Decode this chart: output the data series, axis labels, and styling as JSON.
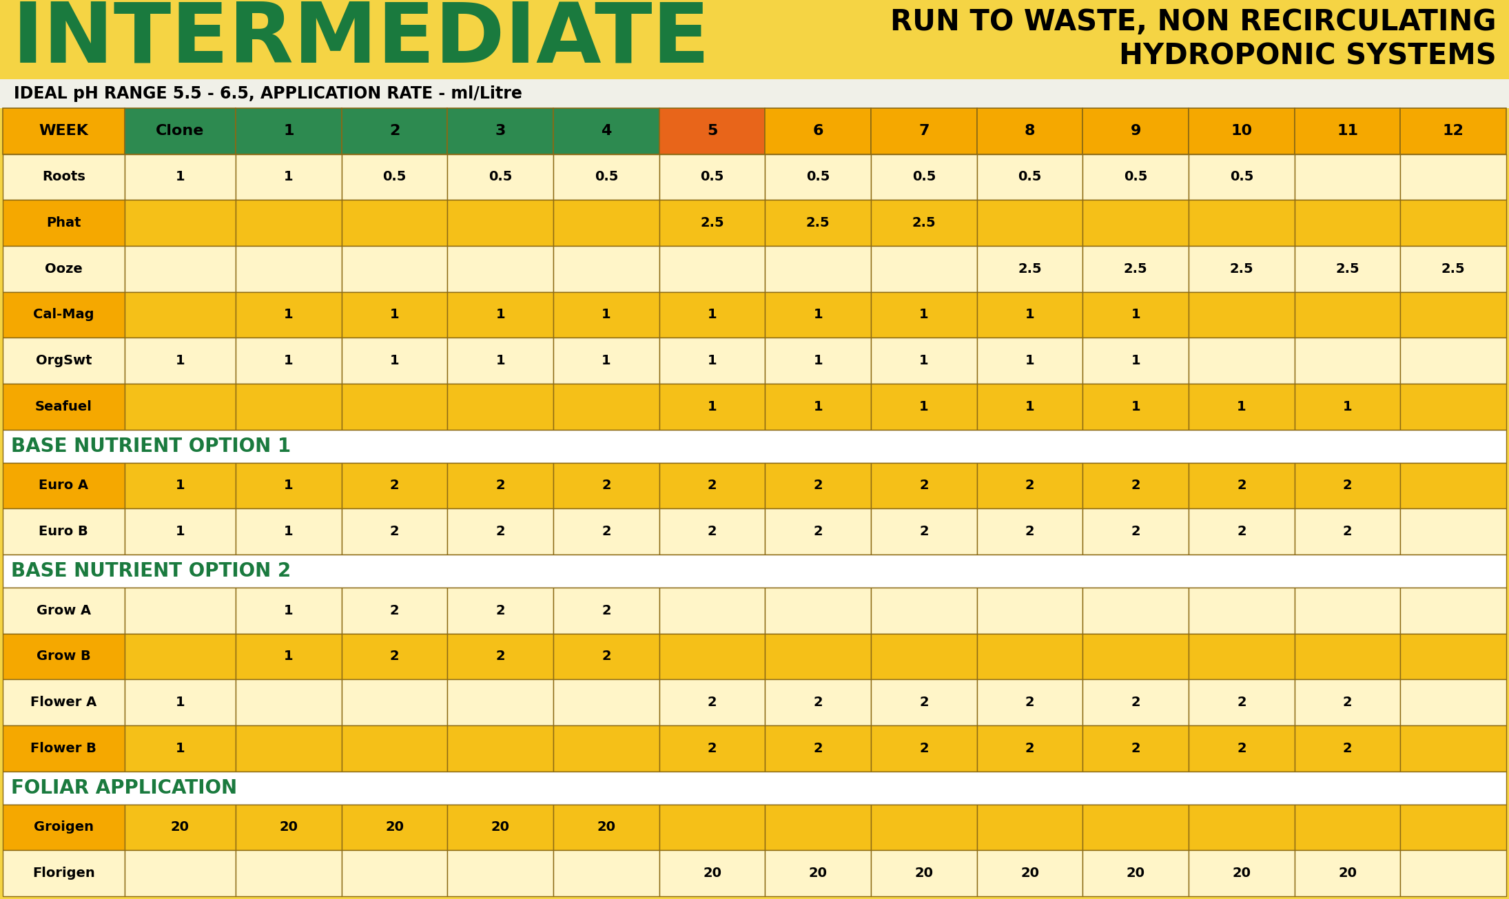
{
  "bg_color": "#F5D444",
  "title_left": "INTERMEDIATE",
  "title_right_line1": "RUN TO WASTE, NON RECIRCULATING",
  "title_right_line2": "HYDROPONIC SYSTEMS",
  "subtitle": "IDEAL pH RANGE 5.5 - 6.5, APPLICATION RATE - ml/Litre",
  "col_labels": [
    "WEEK",
    "Clone",
    "1",
    "2",
    "3",
    "4",
    "5",
    "6",
    "7",
    "8",
    "9",
    "10",
    "11",
    "12"
  ],
  "col_header_colors": [
    "#F5A800",
    "#2D8A50",
    "#2D8A50",
    "#2D8A50",
    "#2D8A50",
    "#2D8A50",
    "#E8651A",
    "#F5A800",
    "#F5A800",
    "#F5A800",
    "#F5A800",
    "#F5A800",
    "#F5A800",
    "#F5A800"
  ],
  "rows": [
    {
      "label": "Roots",
      "bg": "light",
      "values": [
        "1",
        "1",
        "0.5",
        "0.5",
        "0.5",
        "0.5",
        "0.5",
        "0.5",
        "0.5",
        "0.5",
        "0.5",
        "",
        ""
      ]
    },
    {
      "label": "Phat",
      "bg": "amber",
      "values": [
        "",
        "",
        "",
        "",
        "",
        "2.5",
        "2.5",
        "2.5",
        "",
        "",
        "",
        "",
        ""
      ]
    },
    {
      "label": "Ooze",
      "bg": "light",
      "values": [
        "",
        "",
        "",
        "",
        "",
        "",
        "",
        "",
        "2.5",
        "2.5",
        "2.5",
        "2.5",
        "2.5"
      ]
    },
    {
      "label": "Cal-Mag",
      "bg": "amber",
      "values": [
        "",
        "1",
        "1",
        "1",
        "1",
        "1",
        "1",
        "1",
        "1",
        "1",
        "",
        "",
        ""
      ]
    },
    {
      "label": "OrgSwt",
      "bg": "light",
      "values": [
        "1",
        "1",
        "1",
        "1",
        "1",
        "1",
        "1",
        "1",
        "1",
        "1",
        "",
        "",
        ""
      ]
    },
    {
      "label": "Seafuel",
      "bg": "amber",
      "values": [
        "",
        "",
        "",
        "",
        "",
        "1",
        "1",
        "1",
        "1",
        "1",
        "1",
        "1",
        ""
      ]
    },
    {
      "label": "Euro A",
      "bg": "amber",
      "values": [
        "1",
        "1",
        "2",
        "2",
        "2",
        "2",
        "2",
        "2",
        "2",
        "2",
        "2",
        "2",
        ""
      ]
    },
    {
      "label": "Euro B",
      "bg": "light",
      "values": [
        "1",
        "1",
        "2",
        "2",
        "2",
        "2",
        "2",
        "2",
        "2",
        "2",
        "2",
        "2",
        ""
      ]
    },
    {
      "label": "Grow A",
      "bg": "light",
      "values": [
        "",
        "1",
        "2",
        "2",
        "2",
        "",
        "",
        "",
        "",
        "",
        "",
        "",
        ""
      ]
    },
    {
      "label": "Grow B",
      "bg": "amber",
      "values": [
        "",
        "1",
        "2",
        "2",
        "2",
        "",
        "",
        "",
        "",
        "",
        "",
        "",
        ""
      ]
    },
    {
      "label": "Flower A",
      "bg": "light",
      "values": [
        "1",
        "",
        "",
        "",
        "",
        "2",
        "2",
        "2",
        "2",
        "2",
        "2",
        "2",
        ""
      ]
    },
    {
      "label": "Flower B",
      "bg": "amber",
      "values": [
        "1",
        "",
        "",
        "",
        "",
        "2",
        "2",
        "2",
        "2",
        "2",
        "2",
        "2",
        ""
      ]
    },
    {
      "label": "Groigen",
      "bg": "amber",
      "values": [
        "20",
        "20",
        "20",
        "20",
        "20",
        "",
        "",
        "",
        "",
        "",
        "",
        "",
        ""
      ]
    },
    {
      "label": "Florigen",
      "bg": "light",
      "values": [
        "",
        "",
        "",
        "",
        "",
        "20",
        "20",
        "20",
        "20",
        "20",
        "20",
        "20",
        ""
      ]
    }
  ],
  "colors": {
    "amber_row": "#F5C018",
    "amber_label": "#F5A800",
    "light_row": "#FFF5C8",
    "light_label": "#FFF5C8",
    "green_header": "#2D8A50",
    "green_text": "#1A7A3E",
    "orange_header": "#E8651A",
    "week_header": "#F5A800",
    "white": "#FFFFFF",
    "black": "#000000",
    "border_dark": "#8B6914",
    "section_bg": "#FAFAFA"
  }
}
